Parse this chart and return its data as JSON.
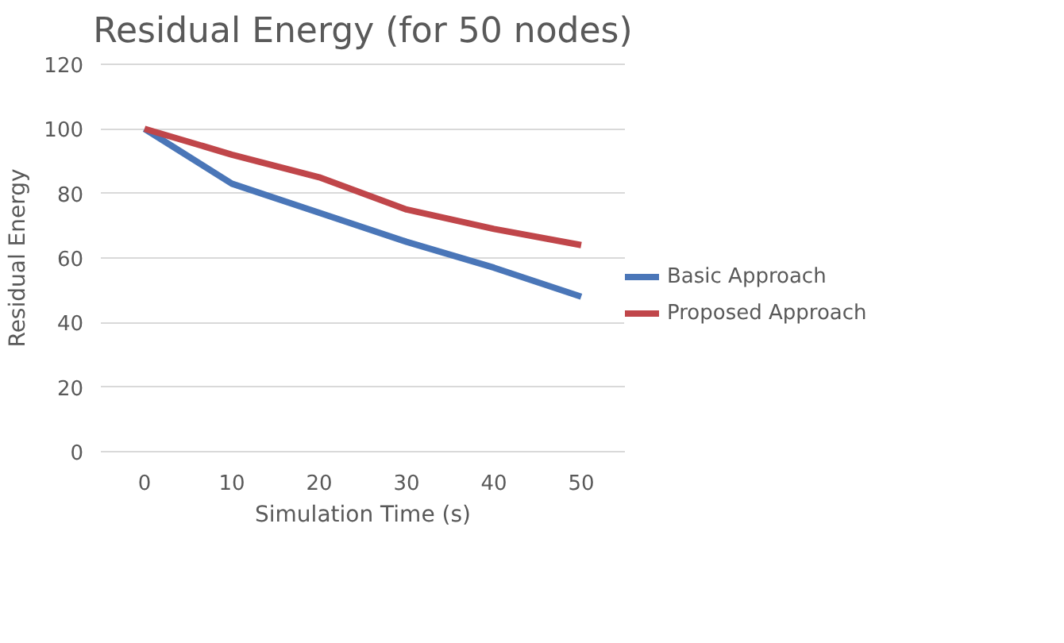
{
  "chart_data": {
    "type": "line",
    "title": "Residual Energy (for 50 nodes)",
    "xlabel": "Simulation Time (s)",
    "ylabel": "Residual Energy",
    "categories": [
      "0",
      "10",
      "20",
      "30",
      "40",
      "50"
    ],
    "series": [
      {
        "name": "Basic Approach",
        "color": "#4a76b8",
        "values": [
          100,
          83,
          74,
          65,
          57,
          48
        ]
      },
      {
        "name": "Proposed Approach",
        "color": "#c0464a",
        "values": [
          100,
          92,
          85,
          75,
          69,
          64
        ]
      }
    ],
    "ylim": [
      0,
      120
    ],
    "yticks": [
      0,
      20,
      40,
      60,
      80,
      100,
      120
    ],
    "grid": "y",
    "legend": "right",
    "marker": "none",
    "line_style": "solid"
  }
}
